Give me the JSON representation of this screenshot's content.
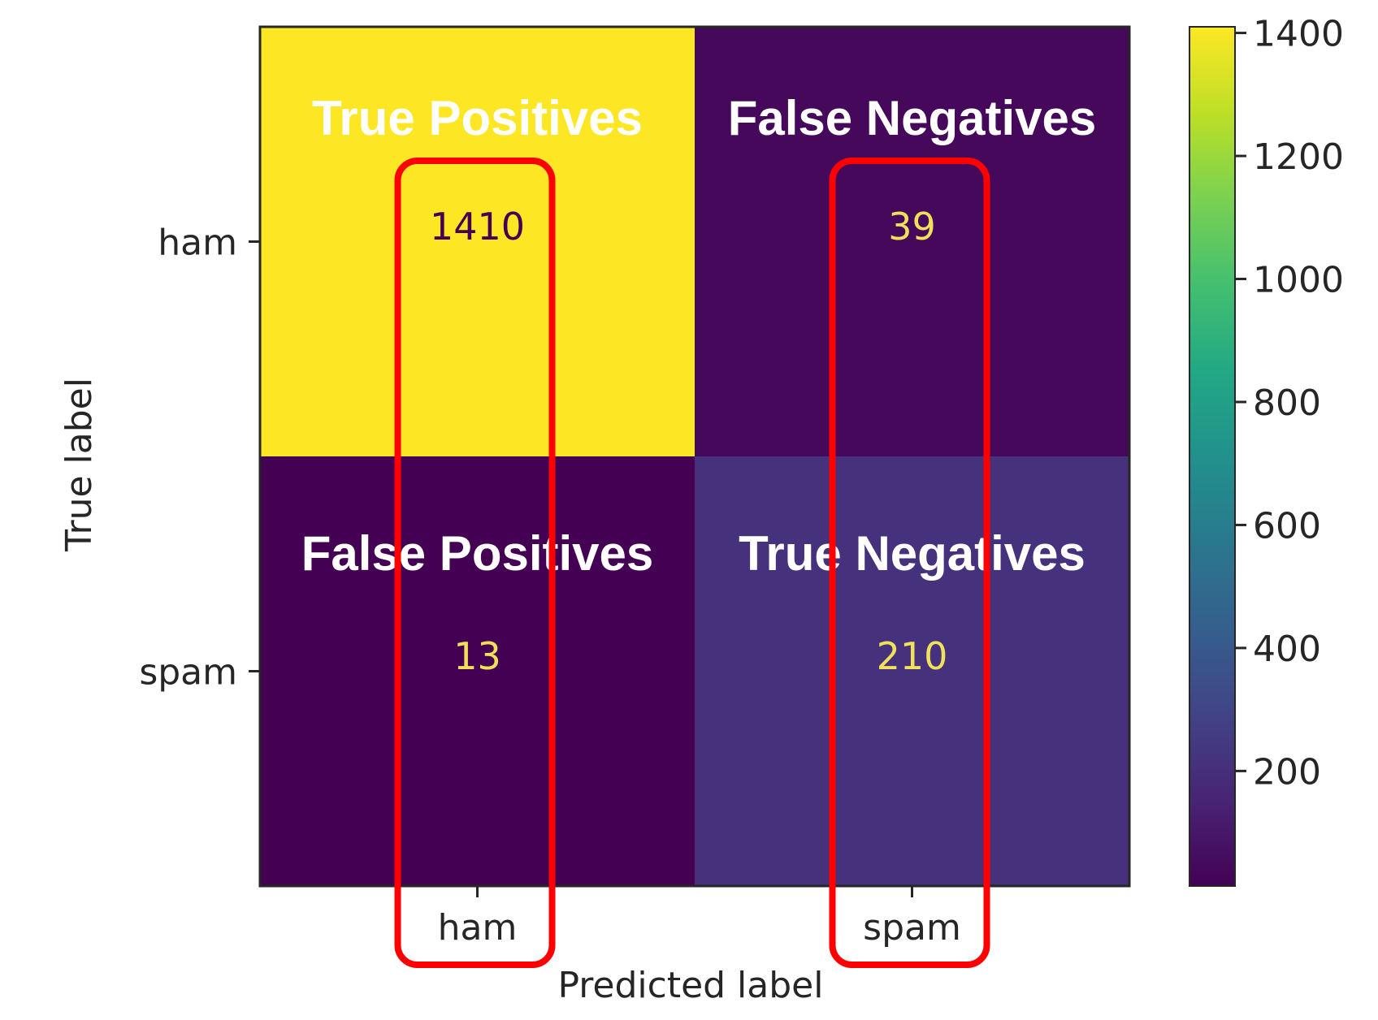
{
  "chart_data": {
    "type": "heatmap",
    "title": "",
    "xlabel": "Predicted label",
    "ylabel": "True label",
    "x_categories": [
      "ham",
      "spam"
    ],
    "y_categories": [
      "ham",
      "spam"
    ],
    "values": [
      [
        1410,
        39
      ],
      [
        13,
        210
      ]
    ],
    "cell_annotations": [
      [
        "True Positives",
        "False Negatives"
      ],
      [
        "False Positives",
        "True Negatives"
      ]
    ],
    "colormap": "viridis",
    "value_text_colors": {
      "on_dark": "#f1e05a",
      "on_light": "#440154"
    },
    "annotation_text_color": "#ffffff",
    "highlight_color": "#ff0000",
    "highlighted_columns": [
      "ham",
      "spam"
    ],
    "colorbar": {
      "range": [
        13,
        1410
      ],
      "ticks": [
        200,
        400,
        600,
        800,
        1000,
        1200,
        1400
      ],
      "tick_labels": [
        "200",
        "400",
        "600",
        "800",
        "1000",
        "1200",
        "1400"
      ]
    }
  }
}
